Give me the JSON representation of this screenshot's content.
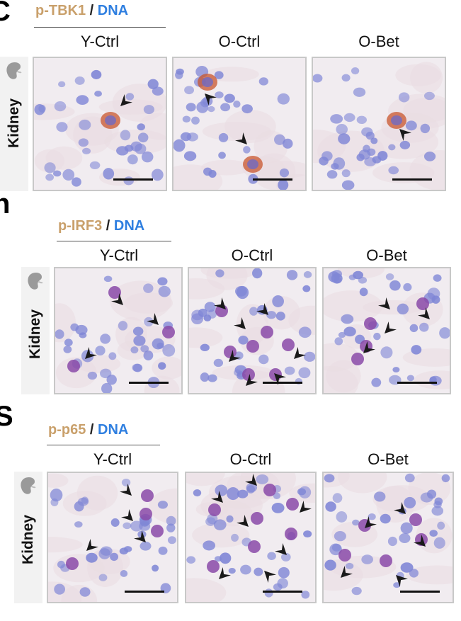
{
  "figure": {
    "panels": [
      {
        "letter": "C",
        "title": {
          "marker": "p-TBK1",
          "separator": "/",
          "counterstain": "DNA"
        },
        "organ": "Kidney",
        "columns": [
          "Y-Ctrl",
          "O-Ctrl",
          "O-Bet"
        ]
      },
      {
        "letter": "h",
        "title": {
          "marker": "p-IRF3",
          "separator": "/",
          "counterstain": "DNA"
        },
        "organ": "Kidney",
        "columns": [
          "Y-Ctrl",
          "O-Ctrl",
          "O-Bet"
        ]
      },
      {
        "letter": "S",
        "title": {
          "marker": "p-p65",
          "separator": "/",
          "counterstain": "DNA"
        },
        "organ": "Kidney",
        "columns": [
          "Y-Ctrl",
          "O-Ctrl",
          "O-Bet"
        ]
      }
    ],
    "colors": {
      "marker_label": "#c9a06b",
      "dna_label": "#2f7fe0",
      "tissue_background": "#f1ecf0",
      "nucleus_blue": "#7f86d6",
      "nucleus_purple": "#8a4aa8",
      "ptbk1_stain": "#c8552e",
      "arrowhead": "#1a1a1a",
      "frame": "#c8c8c8"
    },
    "icons": [
      "kidney-icon",
      "arrowhead-icon",
      "scale-bar"
    ]
  }
}
